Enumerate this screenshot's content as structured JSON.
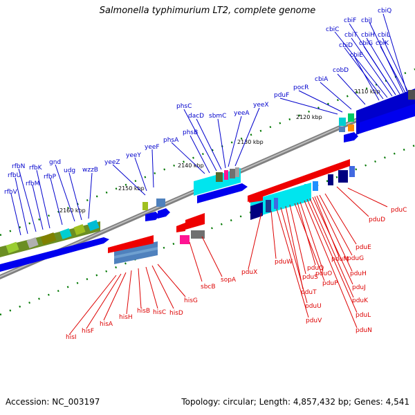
{
  "title": "Salmonella typhimurium LT2, complete genome",
  "footer": {
    "accession": "Accession: NC_003197",
    "topology": "Topology: circular; Length: 4,857,432 bp; Genes: 4,541"
  },
  "colors": {
    "upper_label": "#0000cc",
    "lower_label": "#dd0000",
    "forward_arrow": "#0000ee",
    "reverse_arrow": "#ee0000",
    "tick_mark": "#007700",
    "backbone": "#808080"
  },
  "position_ticks": [
    "2110 kbp",
    "2120 kbp",
    "2130 kbp",
    "2140 kbp",
    "2150 kbp",
    "2160 kbp"
  ],
  "upper_genes": [
    "cbiQ",
    "cbiF",
    "cbiJ",
    "cbiC",
    "cbiT",
    "cbiH",
    "cbiL",
    "cbiD",
    "cbiG",
    "cbiK",
    "cbiE",
    "cobD",
    "cbiA",
    "pocR",
    "pduF",
    "yeeX",
    "phsC",
    "dacD",
    "sbmC",
    "yeeA",
    "phsB",
    "phsA",
    "yeeF",
    "yeeY",
    "yeeZ",
    "gnd",
    "udg",
    "wzzB",
    "rfbN",
    "rfbK",
    "rfbU",
    "rfbP",
    "rfbM",
    "rfbV"
  ],
  "lower_genes": [
    "pduC",
    "pduD",
    "pduE",
    "pduG",
    "pduM",
    "pduH",
    "pduJ",
    "pduK",
    "pduL",
    "pduN",
    "pduQ",
    "pduO",
    "pduP",
    "pduS",
    "pduT",
    "pduU",
    "pduV",
    "pduW",
    "pduX",
    "sopA",
    "sbcB",
    "hisG",
    "hisD",
    "hisC",
    "hisB",
    "hisH",
    "hisA",
    "hisF",
    "hisI"
  ]
}
